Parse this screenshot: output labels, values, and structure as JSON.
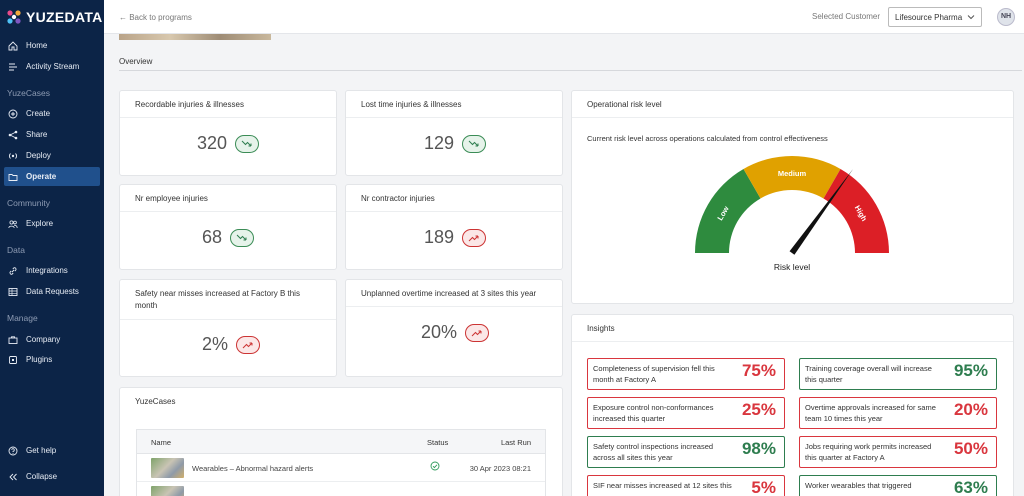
{
  "app": {
    "logo_text": "YUZEDATA"
  },
  "sidebar": {
    "top_items": [
      {
        "label": "Home",
        "icon": "home-icon"
      },
      {
        "label": "Activity Stream",
        "icon": "activity-icon"
      }
    ],
    "sections": [
      {
        "title": "YuzeCases",
        "items": [
          {
            "label": "Create",
            "icon": "plus-circle-icon"
          },
          {
            "label": "Share",
            "icon": "share-icon"
          },
          {
            "label": "Deploy",
            "icon": "broadcast-icon"
          },
          {
            "label": "Operate",
            "icon": "folder-icon",
            "active": true
          }
        ]
      },
      {
        "title": "Community",
        "items": [
          {
            "label": "Explore",
            "icon": "users-icon"
          }
        ]
      },
      {
        "title": "Data",
        "items": [
          {
            "label": "Integrations",
            "icon": "link-icon"
          },
          {
            "label": "Data Requests",
            "icon": "table-icon"
          }
        ]
      },
      {
        "title": "Manage",
        "items": [
          {
            "label": "Company",
            "icon": "briefcase-icon"
          },
          {
            "label": "Plugins",
            "icon": "plugin-icon"
          }
        ]
      }
    ],
    "bottom_items": [
      {
        "label": "Get help",
        "icon": "help-icon"
      },
      {
        "label": "Collapse",
        "icon": "double-chevron-left-icon"
      }
    ]
  },
  "topbar": {
    "back_label": "← Back to programs",
    "selected_customer_label": "Selected Customer",
    "customer_value": "Lifesource Pharma",
    "avatar_initials": "NH"
  },
  "overview": {
    "title": "Overview"
  },
  "metrics": [
    {
      "title": "Recordable injuries & illnesses",
      "value": "320",
      "trend": "down"
    },
    {
      "title": "Lost time injuries & illnesses",
      "value": "129",
      "trend": "down"
    },
    {
      "title": "Nr employee injuries",
      "value": "68",
      "trend": "down"
    },
    {
      "title": "Nr contractor injuries",
      "value": "189",
      "trend": "up"
    },
    {
      "title": "Safety near misses increased at Factory B this month",
      "value": "2%",
      "trend": "up"
    },
    {
      "title": "Unplanned overtime increased at 3 sites this year",
      "value": "20%",
      "trend": "up"
    }
  ],
  "risk": {
    "title": "Operational risk level",
    "description": "Current risk level across operations calculated from control effectiveness",
    "labels": [
      "Low",
      "Medium",
      "High"
    ],
    "colors": {
      "low": "#2e8b3e",
      "medium": "#e0a100",
      "high": "#dc1f26"
    },
    "caption": "Risk level",
    "level": 0.7
  },
  "insights": {
    "title": "Insights",
    "items": [
      {
        "text": "Completeness of supervision fell this month at Factory A",
        "pct": "75%",
        "status": "red"
      },
      {
        "text": "Training coverage overall will increase this quarter",
        "pct": "95%",
        "status": "green"
      },
      {
        "text": "Exposure control non-conformances increased this quarter",
        "pct": "25%",
        "status": "red"
      },
      {
        "text": "Overtime approvals increased for same team 10 times this year",
        "pct": "20%",
        "status": "red"
      },
      {
        "text": "Safety control inspections increased across all sites this year",
        "pct": "98%",
        "status": "green"
      },
      {
        "text": "Jobs requiring work permits increased this quarter at Factory A",
        "pct": "50%",
        "status": "red"
      },
      {
        "text": "SIF near misses increased at 12 sites this",
        "pct": "5%",
        "status": "red"
      },
      {
        "text": "Worker wearables that triggered",
        "pct": "63%",
        "status": "green"
      }
    ]
  },
  "yuzecases": {
    "title": "YuzeCases",
    "headers": {
      "name": "Name",
      "status": "Status",
      "last_run": "Last Run"
    },
    "rows": [
      {
        "name": "Wearables – Abnormal hazard alerts",
        "last_run": "30 Apr 2023 08:21"
      }
    ]
  }
}
